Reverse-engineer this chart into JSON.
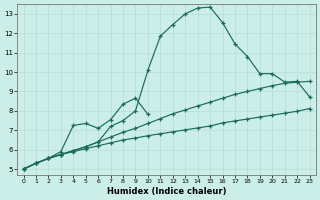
{
  "xlabel": "Humidex (Indice chaleur)",
  "bg_color": "#cceee8",
  "grid_color": "#b8ddd6",
  "line_color": "#1a6b5a",
  "xlim_min": -0.5,
  "xlim_max": 23.5,
  "ylim_min": 4.7,
  "ylim_max": 13.5,
  "xticks": [
    0,
    1,
    2,
    3,
    4,
    5,
    6,
    7,
    8,
    9,
    10,
    11,
    12,
    13,
    14,
    15,
    16,
    17,
    18,
    19,
    20,
    21,
    22,
    23
  ],
  "yticks": [
    5,
    6,
    7,
    8,
    9,
    10,
    11,
    12,
    13
  ],
  "line1_x": [
    0,
    1,
    2,
    3,
    4,
    5,
    6,
    7,
    8,
    9,
    10,
    11,
    12,
    13,
    14,
    15,
    16,
    17,
    18,
    19,
    20,
    21,
    22,
    23
  ],
  "line1_y": [
    5.0,
    5.3,
    5.55,
    5.75,
    5.9,
    6.05,
    6.2,
    6.35,
    6.5,
    6.6,
    6.72,
    6.82,
    6.92,
    7.02,
    7.12,
    7.22,
    7.38,
    7.48,
    7.58,
    7.68,
    7.78,
    7.88,
    7.98,
    8.12
  ],
  "line2_x": [
    0,
    1,
    2,
    3,
    4,
    5,
    6,
    7,
    8,
    9,
    10,
    11,
    12,
    13,
    14,
    15,
    16,
    17,
    18,
    19,
    20,
    21,
    22,
    23
  ],
  "line2_y": [
    5.0,
    5.3,
    5.55,
    5.75,
    5.95,
    6.15,
    6.4,
    6.65,
    6.9,
    7.1,
    7.35,
    7.6,
    7.85,
    8.05,
    8.25,
    8.45,
    8.65,
    8.85,
    9.0,
    9.15,
    9.3,
    9.42,
    9.48,
    9.52
  ],
  "line3_x": [
    0,
    1,
    2,
    3,
    4,
    5,
    6,
    7,
    8,
    9,
    10,
    11,
    12,
    13,
    14,
    15,
    16,
    17,
    18,
    19,
    20,
    21,
    22,
    23
  ],
  "line3_y": [
    5.0,
    5.3,
    5.55,
    5.75,
    5.95,
    6.15,
    6.4,
    7.2,
    7.5,
    8.0,
    10.1,
    11.85,
    12.45,
    13.0,
    13.3,
    13.35,
    12.55,
    11.45,
    10.8,
    9.92,
    9.92,
    9.48,
    9.52,
    8.72
  ],
  "line4_x": [
    0,
    1,
    2,
    3,
    4,
    5,
    6,
    7,
    8,
    9,
    10
  ],
  "line4_y": [
    5.0,
    5.3,
    5.55,
    5.9,
    7.25,
    7.35,
    7.1,
    7.55,
    8.35,
    8.65,
    7.82
  ]
}
